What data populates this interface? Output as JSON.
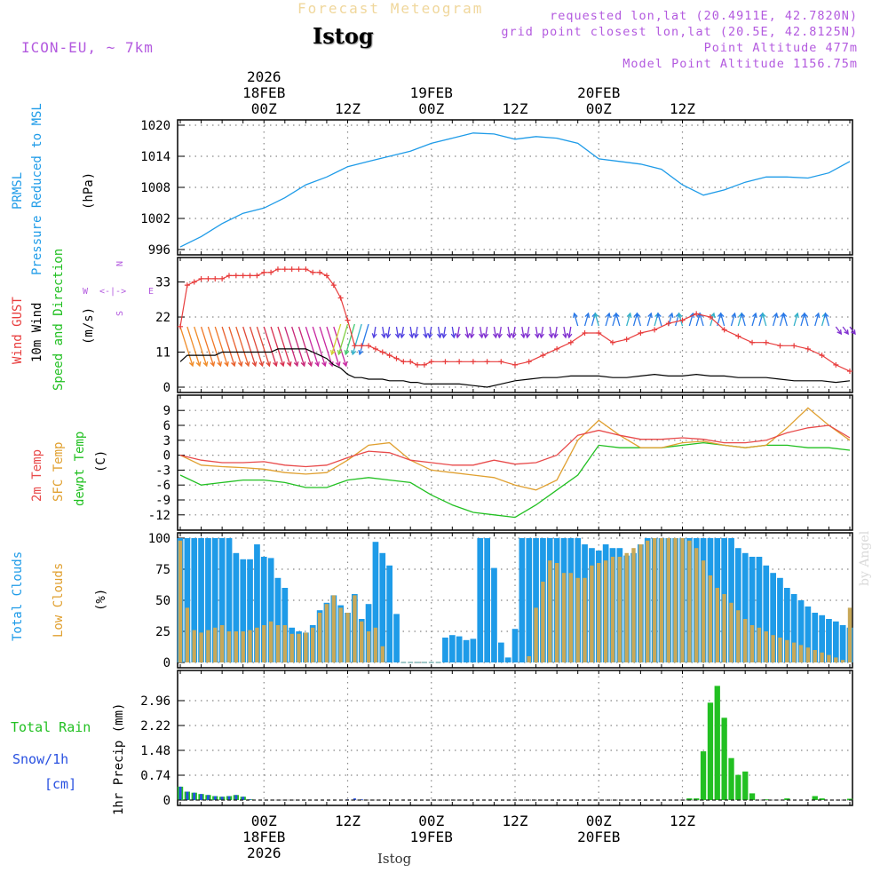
{
  "header": {
    "title": "Forecast Meteogram",
    "location": "Istog",
    "model": "ICON-EU, ~ 7km",
    "requested": "requested lon,lat (20.4911E, 42.7820N)",
    "grid_point": "grid point closest lon,lat (20.5E, 42.8125N)",
    "point_altitude": "Point Altitude 477m",
    "model_altitude": "Model Point Altitude 1156.75m"
  },
  "footer": {
    "location": "Istog",
    "credit": "by Angel"
  },
  "colors": {
    "pressure": "#1e9be8",
    "gust": "#e83c3c",
    "wind": "#000000",
    "temp": "#e84a4a",
    "sfc_temp": "#e0a030",
    "dewpt": "#22c022",
    "total_clouds": "#1e9be8",
    "low_clouds": "#c8a858",
    "rain": "#22c022",
    "snow": "#2850e0",
    "label_purple": "#b35adf"
  },
  "chart_data": [
    {
      "type": "line",
      "title": "PRMSL Pressure Reduced to MSL",
      "ylabel": "(hPa)",
      "ylim": [
        996,
        1020
      ],
      "yticks": [
        996,
        1002,
        1008,
        1014,
        1020
      ],
      "x_hours": [
        0,
        3,
        6,
        9,
        12,
        15,
        18,
        21,
        24,
        27,
        30,
        33,
        36,
        39,
        42,
        45,
        48,
        51,
        54,
        57,
        60,
        63,
        66,
        69,
        72,
        75,
        78,
        81,
        84,
        87,
        90,
        93,
        96
      ],
      "series": [
        {
          "name": "Pressure",
          "values": [
            996.5,
            998.5,
            1001,
            1003,
            1004,
            1006,
            1008.5,
            1010,
            1012,
            1013,
            1014,
            1015,
            1016.5,
            1017.5,
            1018.5,
            1018.3,
            1017.3,
            1017.8,
            1017.5,
            1016.5,
            1013.5,
            1013,
            1012.5,
            1011.5,
            1008.5,
            1006.5,
            1007.5,
            1009,
            1010,
            1010,
            1009.8,
            1010.8,
            1013
          ]
        }
      ]
    },
    {
      "type": "line",
      "title": "Wind GUST / 10m Wind Speed and Direction",
      "ylabel": "(m/s)",
      "ylim": [
        0,
        39
      ],
      "yticks": [
        0,
        11,
        22,
        33
      ],
      "x_hours": [
        0,
        1,
        2,
        3,
        4,
        5,
        6,
        7,
        8,
        9,
        10,
        11,
        12,
        13,
        14,
        15,
        16,
        17,
        18,
        19,
        20,
        21,
        22,
        23,
        24,
        25,
        26,
        27,
        28,
        29,
        30,
        31,
        32,
        33,
        34,
        35,
        36,
        38,
        40,
        42,
        44,
        46,
        48,
        50,
        52,
        54,
        56,
        58,
        60,
        62,
        64,
        66,
        68,
        70,
        72,
        74,
        76,
        78,
        80,
        82,
        84,
        86,
        88,
        90,
        92,
        94,
        96
      ],
      "series": [
        {
          "name": "Wind GUST",
          "values": [
            19,
            32,
            33,
            34,
            34,
            34,
            34,
            35,
            35,
            35,
            35,
            35,
            36,
            36,
            37,
            37,
            37,
            37,
            37,
            36,
            36,
            35,
            32,
            28,
            21,
            13,
            13,
            13,
            12,
            11,
            10,
            9,
            8,
            8,
            7,
            7,
            8,
            8,
            8,
            8,
            8,
            8,
            7,
            8,
            10,
            12,
            14,
            17,
            17,
            14,
            15,
            17,
            18,
            20,
            21,
            23,
            22,
            18,
            16,
            14,
            14,
            13,
            13,
            12,
            10,
            7,
            5
          ]
        },
        {
          "name": "10m Wind",
          "values": [
            8,
            10,
            10,
            10,
            10,
            10,
            11,
            11,
            11,
            11,
            11,
            11,
            11,
            11,
            12,
            12,
            12,
            12,
            12,
            11,
            10,
            9,
            7,
            6,
            4,
            3,
            3,
            2.5,
            2.5,
            2.5,
            2,
            2,
            2,
            1.5,
            1.5,
            1,
            1,
            1,
            1,
            0.5,
            0,
            1,
            2,
            2.5,
            3,
            3,
            3.5,
            3.5,
            3.5,
            3,
            3,
            3.5,
            4,
            3.5,
            3.5,
            4,
            3.5,
            3.5,
            3,
            3,
            3,
            2.5,
            2,
            2,
            2,
            1.5,
            2
          ]
        }
      ],
      "direction_legend": {
        "w": "W",
        "e": "E",
        "n": "N",
        "s": "S"
      }
    },
    {
      "type": "line",
      "title": "2m Temp / SFC Temp / dewpt Temp",
      "ylabel": "(C)",
      "ylim": [
        -14,
        11
      ],
      "yticks": [
        -12,
        -9,
        -6,
        -3,
        0,
        3,
        6,
        9
      ],
      "x_hours": [
        0,
        3,
        6,
        9,
        12,
        15,
        18,
        21,
        24,
        27,
        30,
        33,
        36,
        39,
        42,
        45,
        48,
        51,
        54,
        57,
        60,
        63,
        66,
        69,
        72,
        75,
        78,
        81,
        84,
        87,
        90,
        93,
        96
      ],
      "series": [
        {
          "name": "2m Temp",
          "values": [
            0,
            -1,
            -1.5,
            -1.5,
            -1.3,
            -2,
            -2.3,
            -2,
            -0.5,
            0.8,
            0.5,
            -1,
            -1.5,
            -2,
            -2,
            -1,
            -1.8,
            -1.5,
            0,
            4,
            5,
            4,
            3.2,
            3.2,
            3.5,
            3.2,
            2.5,
            2.5,
            3,
            4.5,
            5.5,
            6,
            3.5
          ]
        },
        {
          "name": "SFC Temp",
          "values": [
            0,
            -2,
            -2.3,
            -2.5,
            -2.8,
            -3.5,
            -3.8,
            -3.5,
            -1,
            2,
            2.5,
            -1,
            -3,
            -3.5,
            -4,
            -4.5,
            -6,
            -7,
            -5,
            3,
            7,
            4,
            1.5,
            1.5,
            2.5,
            2.8,
            2,
            1.5,
            2,
            5.5,
            9.5,
            6,
            3
          ]
        },
        {
          "name": "dewpt Temp",
          "values": [
            -4,
            -6,
            -5.5,
            -5,
            -5,
            -5.5,
            -6.5,
            -6.5,
            -5,
            -4.5,
            -5,
            -5.5,
            -8,
            -10,
            -11.5,
            -12,
            -12.5,
            -10,
            -7,
            -4,
            2,
            1.5,
            1.5,
            1.5,
            2,
            2.5,
            2,
            1.5,
            2,
            2,
            1.5,
            1.5,
            1
          ]
        }
      ]
    },
    {
      "type": "bar",
      "title": "Total Clouds / Low Clouds",
      "ylabel": "(%)",
      "ylim": [
        0,
        100
      ],
      "yticks": [
        0,
        25,
        50,
        75,
        100
      ],
      "x_hours": [
        0,
        1,
        2,
        3,
        4,
        5,
        6,
        7,
        8,
        9,
        10,
        11,
        12,
        13,
        14,
        15,
        16,
        17,
        18,
        19,
        20,
        21,
        22,
        23,
        24,
        25,
        26,
        27,
        28,
        29,
        30,
        31,
        32,
        33,
        34,
        35,
        36,
        37,
        38,
        39,
        40,
        41,
        42,
        43,
        44,
        45,
        46,
        47,
        48,
        49,
        50,
        51,
        52,
        53,
        54,
        55,
        56,
        57,
        58,
        59,
        60,
        61,
        62,
        63,
        64,
        65,
        66,
        67,
        68,
        69,
        70,
        71,
        72,
        73,
        74,
        75,
        76,
        77,
        78,
        79,
        80,
        81,
        82,
        83,
        84,
        85,
        86,
        87,
        88,
        89,
        90,
        91,
        92,
        93,
        94,
        95,
        96
      ],
      "series": [
        {
          "name": "Total Clouds",
          "values": [
            100,
            100,
            100,
            100,
            100,
            100,
            100,
            100,
            88,
            83,
            83,
            95,
            85,
            84,
            68,
            60,
            28,
            25,
            24,
            30,
            42,
            48,
            54,
            46,
            40,
            55,
            35,
            47,
            97,
            88,
            78,
            39,
            0,
            0,
            0,
            0,
            0,
            0,
            20,
            22,
            21,
            18,
            19,
            100,
            100,
            76,
            16,
            4,
            27,
            100,
            100,
            100,
            100,
            100,
            100,
            100,
            100,
            100,
            95,
            92,
            90,
            95,
            92,
            92,
            86,
            88,
            95,
            100,
            100,
            100,
            100,
            100,
            100,
            100,
            100,
            100,
            100,
            100,
            100,
            100,
            92,
            88,
            85,
            85,
            78,
            72,
            68,
            60,
            55,
            50,
            45,
            40,
            38,
            35,
            33,
            30,
            28
          ]
        },
        {
          "name": "Low Clouds",
          "values": [
            98,
            44,
            26,
            24,
            26,
            28,
            30,
            25,
            25,
            25,
            26,
            28,
            30,
            33,
            30,
            30,
            23,
            23,
            24,
            28,
            40,
            47,
            54,
            44,
            40,
            54,
            33,
            25,
            28,
            13,
            0,
            0,
            0,
            0,
            0,
            0,
            0,
            0,
            0,
            0,
            0,
            0,
            0,
            0,
            0,
            0,
            0,
            0,
            0,
            0,
            5,
            44,
            65,
            82,
            80,
            72,
            72,
            68,
            68,
            78,
            80,
            82,
            85,
            85,
            88,
            92,
            95,
            98,
            100,
            100,
            100,
            100,
            100,
            98,
            92,
            82,
            70,
            60,
            55,
            48,
            42,
            35,
            30,
            28,
            25,
            22,
            20,
            18,
            16,
            14,
            12,
            10,
            8,
            6,
            4,
            2,
            44
          ]
        }
      ]
    },
    {
      "type": "bar",
      "title": "Total Rain / Snow/1h [cm]",
      "ylabel": "1hr Precip (mm)",
      "ylim": [
        0,
        3.7
      ],
      "yticks": [
        0,
        0.74,
        1.48,
        2.22,
        2.96
      ],
      "x_hours": [
        0,
        1,
        2,
        3,
        4,
        5,
        6,
        7,
        8,
        9,
        10,
        11,
        12,
        13,
        14,
        15,
        16,
        17,
        18,
        19,
        20,
        21,
        22,
        23,
        24,
        25,
        26,
        27,
        28,
        29,
        30,
        31,
        32,
        33,
        34,
        35,
        36,
        37,
        38,
        39,
        40,
        41,
        42,
        43,
        44,
        45,
        46,
        47,
        48,
        49,
        50,
        51,
        52,
        53,
        54,
        55,
        56,
        57,
        58,
        59,
        60,
        61,
        62,
        63,
        64,
        65,
        66,
        67,
        68,
        69,
        70,
        71,
        72,
        73,
        74,
        75,
        76,
        77,
        78,
        79,
        80,
        81,
        82,
        83,
        84,
        85,
        86,
        87,
        88,
        89,
        90,
        91,
        92,
        93,
        94,
        95,
        96
      ],
      "series": [
        {
          "name": "Total Rain",
          "values": [
            0.4,
            0.25,
            0.22,
            0.18,
            0.15,
            0.12,
            0.1,
            0.12,
            0.15,
            0.1,
            0.02,
            0,
            0,
            0,
            0,
            0,
            0,
            0,
            0,
            0,
            0,
            0,
            0,
            0,
            0,
            0,
            0,
            0,
            0,
            0,
            0,
            0,
            0,
            0,
            0,
            0,
            0,
            0,
            0,
            0,
            0,
            0,
            0,
            0,
            0,
            0,
            0,
            0,
            0,
            0,
            0,
            0,
            0,
            0,
            0,
            0,
            0,
            0,
            0,
            0,
            0,
            0,
            0,
            0,
            0,
            0,
            0,
            0,
            0,
            0,
            0,
            0,
            0,
            0.05,
            0.05,
            1.45,
            2.9,
            3.4,
            2.45,
            1.25,
            0.75,
            0.85,
            0.2,
            0,
            0.02,
            0,
            0,
            0.05,
            0,
            0,
            0,
            0.12,
            0.05,
            0,
            0,
            0,
            0.04
          ]
        },
        {
          "name": "Snow/1h",
          "values": [
            0.4,
            0.25,
            0.22,
            0.18,
            0.15,
            0.12,
            0.1,
            0.12,
            0.15,
            0.1,
            0.02,
            0,
            0,
            0,
            0,
            0,
            0,
            0,
            0,
            0,
            0,
            0,
            0,
            0,
            0.02,
            0.05,
            0.02,
            0,
            0,
            0,
            0,
            0,
            0,
            0,
            0,
            0,
            0,
            0,
            0,
            0,
            0,
            0,
            0,
            0,
            0,
            0,
            0,
            0,
            0,
            0,
            0,
            0,
            0,
            0,
            0,
            0,
            0,
            0,
            0,
            0,
            0,
            0,
            0,
            0,
            0,
            0,
            0,
            0,
            0,
            0,
            0,
            0,
            0,
            0,
            0,
            0,
            0,
            0,
            0,
            0,
            0,
            0,
            0,
            0,
            0,
            0,
            0,
            0,
            0,
            0,
            0,
            0,
            0,
            0,
            0,
            0,
            0
          ]
        }
      ]
    }
  ],
  "panel_labels": {
    "pressure": {
      "l1": "PRMSL",
      "l2": "Pressure Reduced to MSL",
      "unit": "(hPa)"
    },
    "wind": {
      "l1": "Wind GUST",
      "l2": "10m Wind",
      "l3": "Speed and Direction",
      "unit": "(m/s)"
    },
    "temp": {
      "l1": "2m Temp",
      "l2": "SFC Temp",
      "l3": "dewpt Temp",
      "unit": "(C)"
    },
    "clouds": {
      "l1": "Total Clouds",
      "l2": "Low Clouds",
      "unit": "(%)"
    },
    "precip": {
      "rain": "Total Rain",
      "snow": "Snow/1h",
      "cm": "[cm]",
      "unit": "1hr Precip (mm)"
    }
  },
  "top_axis": {
    "year": "2026",
    "labels": [
      {
        "hour": 12,
        "day": "18FEB",
        "time": "00Z"
      },
      {
        "hour": 24,
        "day": "",
        "time": "12Z"
      },
      {
        "hour": 36,
        "day": "19FEB",
        "time": "00Z"
      },
      {
        "hour": 48,
        "day": "",
        "time": "12Z"
      },
      {
        "hour": 60,
        "day": "20FEB",
        "time": "00Z"
      },
      {
        "hour": 72,
        "day": "",
        "time": "12Z"
      }
    ]
  }
}
